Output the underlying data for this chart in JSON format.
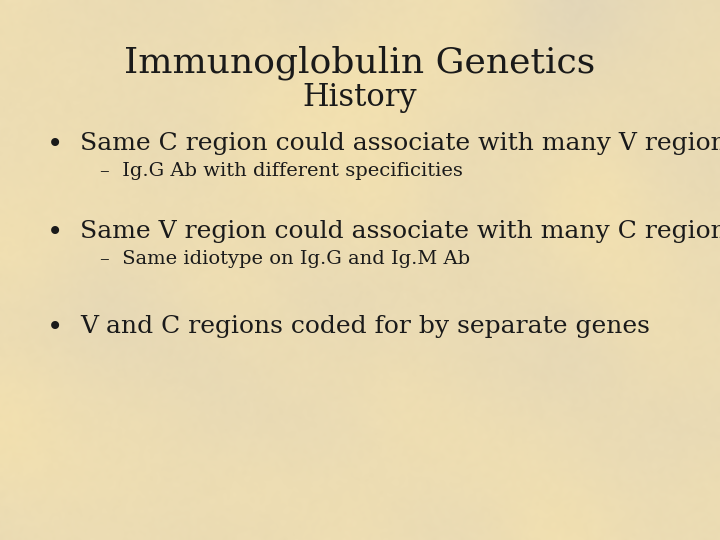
{
  "title_line1": "Immunoglobulin Genetics",
  "title_line2": "History",
  "bg_color": "#e8dcc0",
  "text_color": "#1a1a1a",
  "title_fontsize": 26,
  "subtitle_fontsize": 22,
  "bullet_fontsize": 18,
  "sub_bullet_fontsize": 14,
  "bullets": [
    {
      "text": "Same C region could associate with many V regions",
      "sub": "Ig.G Ab with different specificities"
    },
    {
      "text": "Same V region could associate with many C regions",
      "sub": "Same idiotype on Ig.G and Ig.M Ab"
    },
    {
      "text": "V and C regions coded for by separate genes",
      "sub": null
    }
  ],
  "font_family": "serif",
  "figsize": [
    7.2,
    5.4
  ],
  "dpi": 100
}
